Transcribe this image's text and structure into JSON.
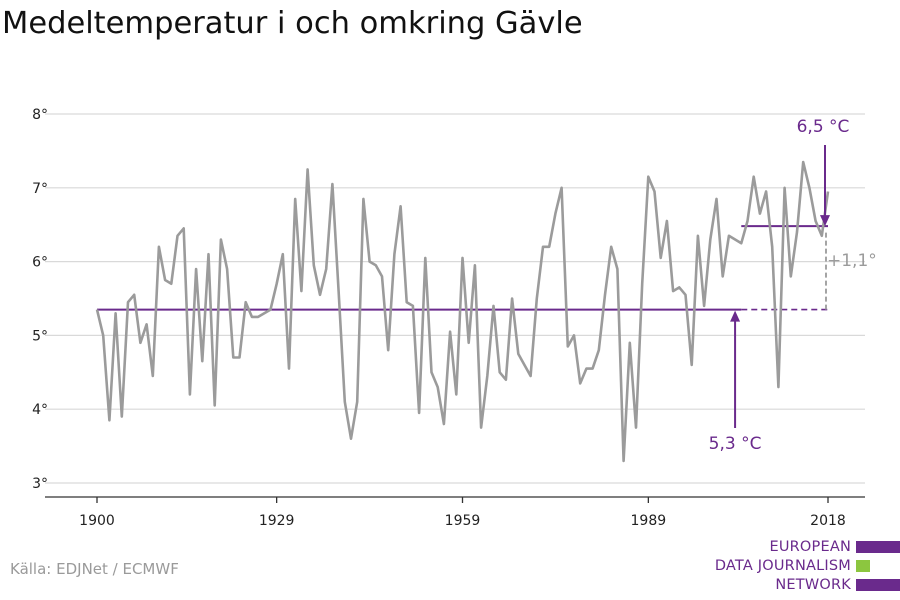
{
  "title": "Medeltemperatur i och omkring Gävle",
  "source": "Källa: EDJNet / ECMWF",
  "logo": {
    "lines": [
      "EUROPEAN",
      "DATA JOURNALISM",
      "NETWORK"
    ],
    "colors": [
      "#6a2a8c",
      "#8cc63f",
      "#6a2a8c"
    ]
  },
  "chart_data": {
    "type": "line",
    "title": "Medeltemperatur i och omkring Gävle",
    "xlabel": "",
    "ylabel": "",
    "xlim": [
      1900,
      2018
    ],
    "ylim": [
      3,
      8
    ],
    "x_ticks": [
      1900,
      1929,
      1959,
      1989,
      2018
    ],
    "x_tick_labels": [
      "1900",
      "1929",
      "1959",
      "1989",
      "2018"
    ],
    "y_ticks": [
      3,
      4,
      5,
      6,
      7,
      8
    ],
    "y_tick_labels": [
      "3°",
      "4°",
      "5°",
      "6°",
      "7°",
      "8°"
    ],
    "grid": true,
    "colors": {
      "line": "#9b9b9b",
      "reference": "#6a2a8c",
      "difference": "#9b9b9b"
    },
    "series": [
      {
        "x": [
          1900,
          1901,
          1902,
          1903,
          1904,
          1905,
          1906,
          1907,
          1908,
          1909,
          1910,
          1911,
          1912,
          1913,
          1914,
          1915,
          1916,
          1917,
          1918,
          1919,
          1920,
          1921,
          1922,
          1923,
          1924,
          1925,
          1926,
          1927,
          1928,
          1929,
          1930,
          1931,
          1932,
          1933,
          1934,
          1935,
          1936,
          1937,
          1938,
          1939,
          1940,
          1941,
          1942,
          1943,
          1944,
          1945,
          1946,
          1947,
          1948,
          1949,
          1950,
          1951,
          1952,
          1953,
          1954,
          1955,
          1956,
          1957,
          1958,
          1959,
          1960,
          1961,
          1962,
          1963,
          1964,
          1965,
          1966,
          1967,
          1968,
          1969,
          1970,
          1971,
          1972,
          1973,
          1974,
          1975,
          1976,
          1977,
          1978,
          1979,
          1980,
          1981,
          1982,
          1983,
          1984,
          1985,
          1986,
          1987,
          1988,
          1989,
          1990,
          1991,
          1992,
          1993,
          1994,
          1995,
          1996,
          1997,
          1998,
          1999,
          2000,
          2001,
          2002,
          2003,
          2004,
          2005,
          2006,
          2007,
          2008,
          2009,
          2010,
          2011,
          2012,
          2013,
          2014,
          2015,
          2016,
          2017,
          2018
        ],
        "values": [
          5.35,
          5.0,
          3.85,
          5.3,
          3.9,
          5.45,
          5.55,
          4.9,
          5.15,
          4.45,
          6.2,
          5.75,
          5.7,
          6.35,
          6.45,
          4.2,
          5.9,
          4.65,
          6.1,
          4.05,
          6.3,
          5.9,
          4.7,
          4.7,
          5.45,
          5.25,
          5.25,
          5.3,
          5.35,
          5.7,
          6.1,
          4.55,
          6.85,
          5.6,
          7.25,
          5.95,
          5.55,
          5.9,
          7.05,
          5.6,
          4.1,
          3.6,
          4.1,
          6.85,
          6.0,
          5.95,
          5.8,
          4.8,
          6.1,
          6.75,
          5.45,
          5.4,
          3.95,
          6.05,
          4.5,
          4.3,
          3.8,
          5.05,
          4.2,
          6.05,
          4.9,
          5.95,
          3.75,
          4.45,
          5.4,
          4.5,
          4.4,
          5.5,
          4.75,
          4.6,
          4.45,
          5.5,
          6.2,
          6.2,
          6.65,
          7.0,
          4.85,
          5.0,
          4.35,
          4.55,
          4.55,
          4.8,
          5.55,
          6.2,
          5.9,
          3.3,
          4.9,
          3.75,
          5.7,
          7.15,
          6.95,
          6.05,
          6.55,
          5.6,
          5.65,
          5.55,
          4.6,
          6.35,
          5.4,
          6.3,
          6.85,
          5.8,
          6.35,
          6.3,
          6.25,
          6.55,
          7.15,
          6.65,
          6.95,
          6.2,
          4.3,
          7.0,
          5.8,
          6.4,
          7.35,
          7.0,
          6.55,
          6.35,
          6.95
        ]
      }
    ],
    "reference_lines": [
      {
        "label": "5,3 °C",
        "value": 5.35,
        "x_start": 1900,
        "x_end": 2004,
        "extended_to": 2018
      },
      {
        "label": "6,5 °C",
        "value": 6.48,
        "x_start": 2004,
        "x_end": 2018
      }
    ],
    "annotations": [
      {
        "text": "6,5 °C",
        "color": "#6a2a8c"
      },
      {
        "text": "5,3 °C",
        "color": "#6a2a8c"
      },
      {
        "text": "+1,1°",
        "color": "#9b9b9b"
      }
    ]
  }
}
